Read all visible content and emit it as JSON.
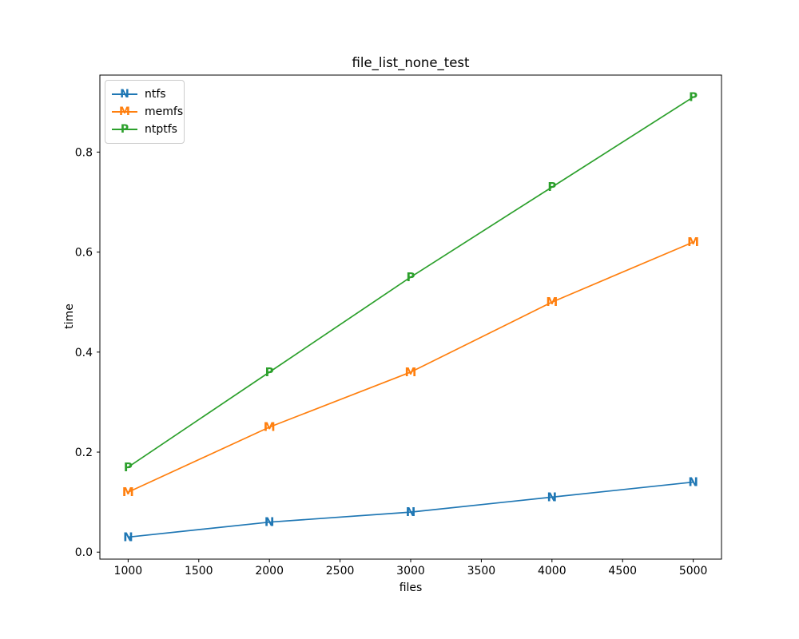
{
  "figure": {
    "background": "#ffffff",
    "axis_color": "#000000",
    "tick_label_color": "#000000",
    "legend_border_color": "#cccccc"
  },
  "chart_data": {
    "type": "line",
    "title": "file_list_none_test",
    "xlabel": "files",
    "ylabel": "time",
    "x": [
      1000,
      2000,
      3000,
      4000,
      5000
    ],
    "series": [
      {
        "name": "ntfs",
        "marker": "N",
        "color": "#1f77b4",
        "values": [
          0.03,
          0.06,
          0.08,
          0.11,
          0.14
        ]
      },
      {
        "name": "memfs",
        "marker": "M",
        "color": "#ff7f0e",
        "values": [
          0.12,
          0.25,
          0.36,
          0.5,
          0.62
        ]
      },
      {
        "name": "ntptfs",
        "marker": "P",
        "color": "#2ca02c",
        "values": [
          0.17,
          0.36,
          0.55,
          0.73,
          0.91
        ]
      }
    ],
    "xticks": [
      "1000",
      "1500",
      "2000",
      "2500",
      "3000",
      "3500",
      "4000",
      "4500",
      "5000"
    ],
    "yticks": [
      "0.0",
      "0.2",
      "0.4",
      "0.6",
      "0.8"
    ],
    "xlim": [
      800,
      5200
    ],
    "ylim": [
      -0.014,
      0.954
    ],
    "grid": false,
    "legend_position": "upper left"
  }
}
